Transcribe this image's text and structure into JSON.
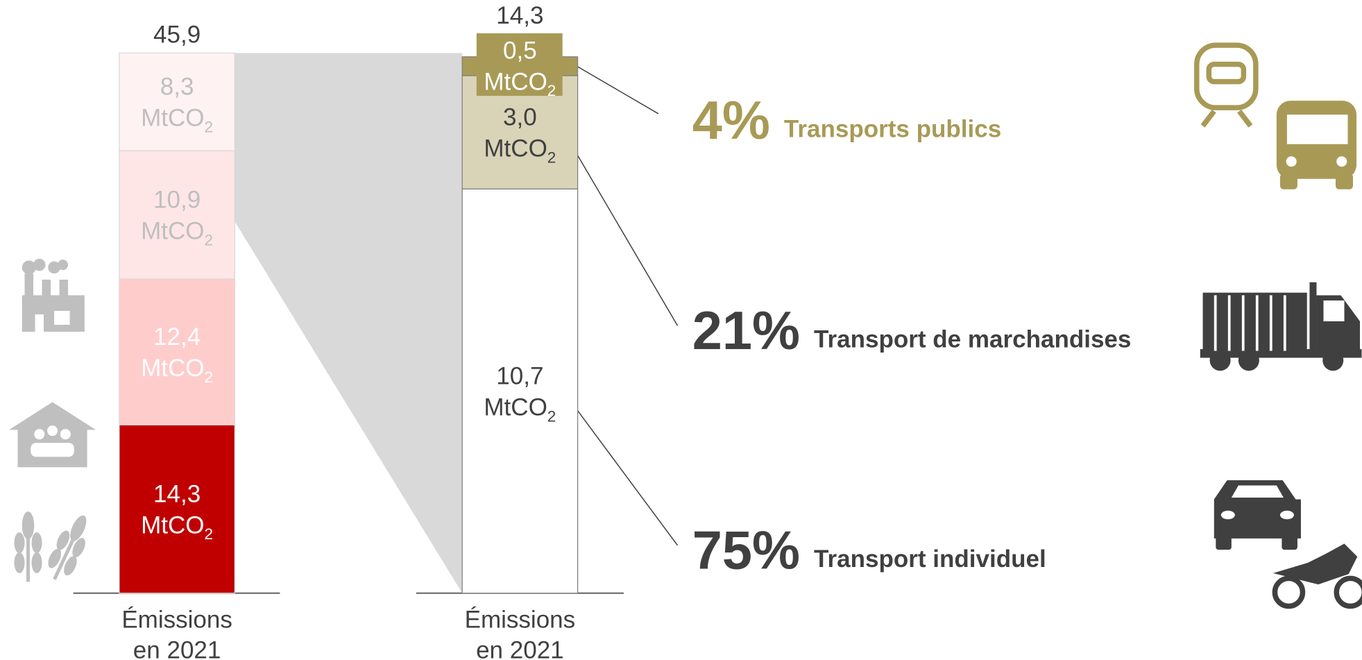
{
  "chart_data": [
    {
      "type": "stacked_bar",
      "category_lines": [
        "Émissions",
        "en 2021"
      ],
      "values": [
        14.3,
        12.4,
        10.9,
        8.3
      ],
      "value_labels": [
        "14,3",
        "12,4",
        "10,9",
        "8,3"
      ],
      "colors": [
        "#c00000",
        "#ffcccc",
        "#ffe6e6",
        "#fff2f2"
      ],
      "label_colors": [
        "#ffffff",
        "#ffffff",
        "#bfbfbf",
        "#bfbfbf"
      ],
      "unit": "MtCO",
      "unit_sub": "2",
      "total": 45.9,
      "total_label": "45,9",
      "ylim": [
        0,
        45.9
      ]
    },
    {
      "type": "stacked_bar",
      "category_lines": [
        "Émissions",
        "en 2021"
      ],
      "values": [
        10.7,
        3.0,
        0.5
      ],
      "value_labels": [
        "10,7",
        "3,0",
        "0,5"
      ],
      "colors": [
        "#ffffff",
        "#d9d4b8",
        "#a89a56"
      ],
      "label_colors": [
        "#404040",
        "#404040",
        "#ffffff"
      ],
      "unit": "MtCO",
      "unit_sub": "2",
      "total": 14.3,
      "total_label": "14,3",
      "ylim": [
        0,
        14.3
      ],
      "annotations": [
        {
          "percent": 75,
          "label": "75%",
          "name": "Transport individuel",
          "color": "#404040"
        },
        {
          "percent": 21,
          "label": "21%",
          "name": "Transport de marchandises",
          "color": "#404040"
        },
        {
          "percent": 4,
          "label": "4%",
          "name": "Transports publics",
          "color": "#a89a56"
        }
      ]
    }
  ]
}
